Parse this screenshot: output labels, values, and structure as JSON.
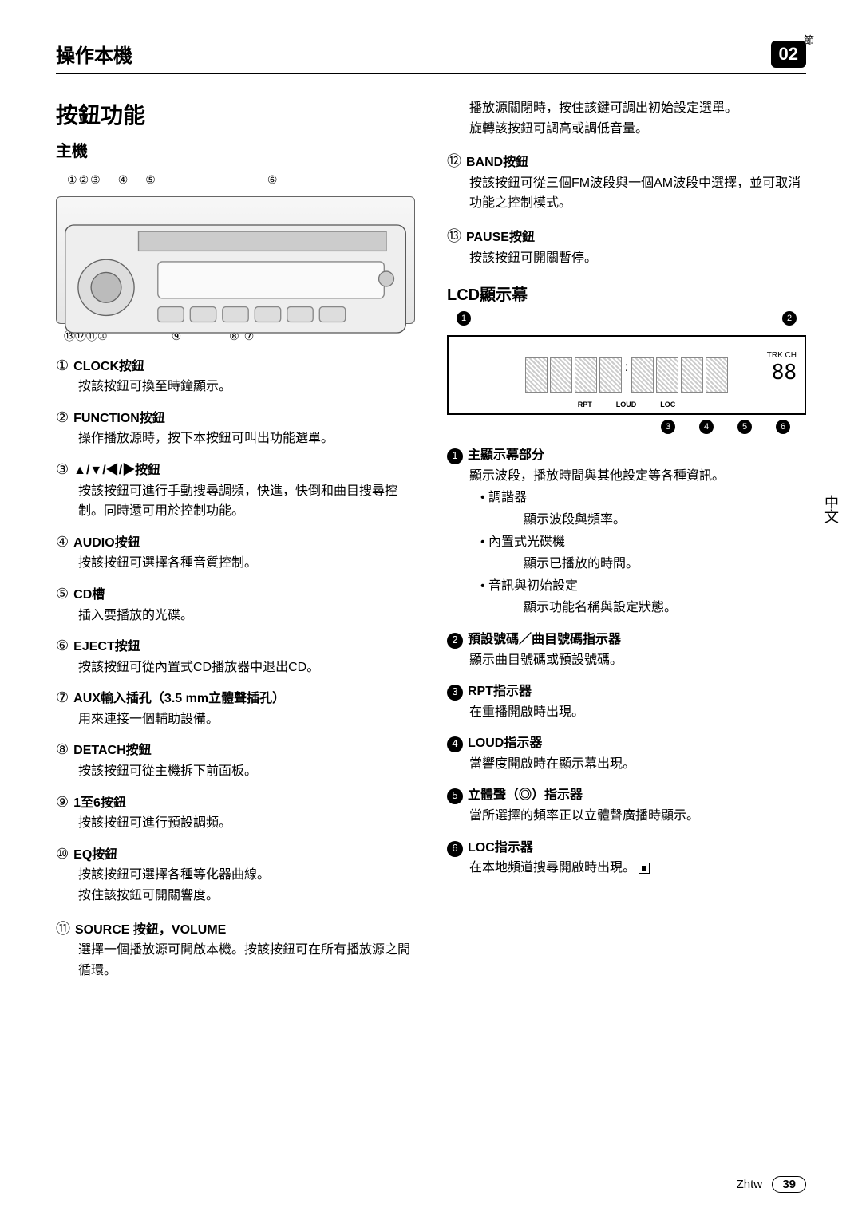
{
  "page": {
    "section_label": "節",
    "header_title": "操作本機",
    "chapter_number": "02",
    "side_tab": "中文",
    "footer_lang": "Zhtw",
    "footer_page": "39"
  },
  "left": {
    "title": "按鈕功能",
    "subtitle": "主機",
    "callouts_top": [
      "①",
      "②",
      "③",
      "④",
      "⑤",
      "⑥"
    ],
    "callouts_bot": [
      "⑬",
      "⑫",
      "⑪",
      "⑩",
      "⑨",
      "⑧",
      "⑦"
    ],
    "items": [
      {
        "n": "1",
        "head": "CLOCK按鈕",
        "body": [
          "按該按鈕可換至時鐘顯示。"
        ]
      },
      {
        "n": "2",
        "head": "FUNCTION按鈕",
        "body": [
          "操作播放源時，按下本按鈕可叫出功能選單。"
        ]
      },
      {
        "n": "3",
        "head": "▲/▼/◀/▶按鈕",
        "body": [
          "按該按鈕可進行手動搜尋調頻，快進，快倒和曲目搜尋控制。同時還可用於控制功能。"
        ]
      },
      {
        "n": "4",
        "head": "AUDIO按鈕",
        "body": [
          "按該按鈕可選擇各種音質控制。"
        ]
      },
      {
        "n": "5",
        "head": "CD槽",
        "body": [
          "插入要播放的光碟。"
        ]
      },
      {
        "n": "6",
        "head": "EJECT按鈕",
        "body": [
          "按該按鈕可從內置式CD播放器中退出CD。"
        ]
      },
      {
        "n": "7",
        "head": "AUX輸入插孔（3.5 mm立體聲插孔）",
        "body": [
          "用來連接一個輔助設備。"
        ]
      },
      {
        "n": "8",
        "head": "DETACH按鈕",
        "body": [
          "按該按鈕可從主機拆下前面板。"
        ]
      },
      {
        "n": "9",
        "head": "1至6按鈕",
        "body": [
          "按該按鈕可進行預設調頻。"
        ]
      },
      {
        "n": "10",
        "head": "EQ按鈕",
        "body": [
          "按該按鈕可選擇各種等化器曲線。",
          "按住該按鈕可開關響度。"
        ]
      },
      {
        "n": "11",
        "head": "SOURCE 按鈕，VOLUME",
        "body": [
          "選擇一個播放源可開啟本機。按該按鈕可在所有播放源之間循環。"
        ]
      }
    ]
  },
  "right": {
    "continuation": [
      "播放源關閉時，按住該鍵可調出初始設定選單。",
      "旋轉該按鈕可調高或調低音量。"
    ],
    "items_top": [
      {
        "n": "12",
        "head": "BAND按鈕",
        "body": [
          "按該按鈕可從三個FM波段與一個AM波段中選擇，並可取消功能之控制模式。"
        ]
      },
      {
        "n": "13",
        "head": "PAUSE按鈕",
        "body": [
          "按該按鈕可開關暫停。"
        ]
      }
    ],
    "lcd_title": "LCD顯示幕",
    "lcd": {
      "top": [
        "1",
        "2"
      ],
      "bot": [
        "3",
        "4",
        "5",
        "6"
      ],
      "labels": [
        "RPT",
        "LOUD",
        "LOC"
      ],
      "small_top": "TRK CH",
      "small_digits": "88"
    },
    "items_lcd": [
      {
        "n": "1",
        "head": "主顯示幕部分",
        "body": [
          "顯示波段，播放時間與其他設定等各種資訊。"
        ],
        "bullets": [
          {
            "t": "調諧器",
            "s": "顯示波段與頻率。"
          },
          {
            "t": "內置式光碟機",
            "s": "顯示已播放的時間。"
          },
          {
            "t": "音訊與初始設定",
            "s": "顯示功能名稱與設定狀態。"
          }
        ]
      },
      {
        "n": "2",
        "head": "預設號碼／曲目號碼指示器",
        "body": [
          "顯示曲目號碼或預設號碼。"
        ]
      },
      {
        "n": "3",
        "head": "RPT指示器",
        "body": [
          "在重播開啟時出現。"
        ]
      },
      {
        "n": "4",
        "head": "LOUD指示器",
        "body": [
          "當響度開啟時在顯示幕出現。"
        ]
      },
      {
        "n": "5",
        "head": "立體聲（◎）指示器",
        "body": [
          "當所選擇的頻率正以立體聲廣播時顯示。"
        ]
      },
      {
        "n": "6",
        "head": "LOC指示器",
        "body": [
          "在本地頻道搜尋開啟時出現。"
        ],
        "end": true
      }
    ]
  }
}
